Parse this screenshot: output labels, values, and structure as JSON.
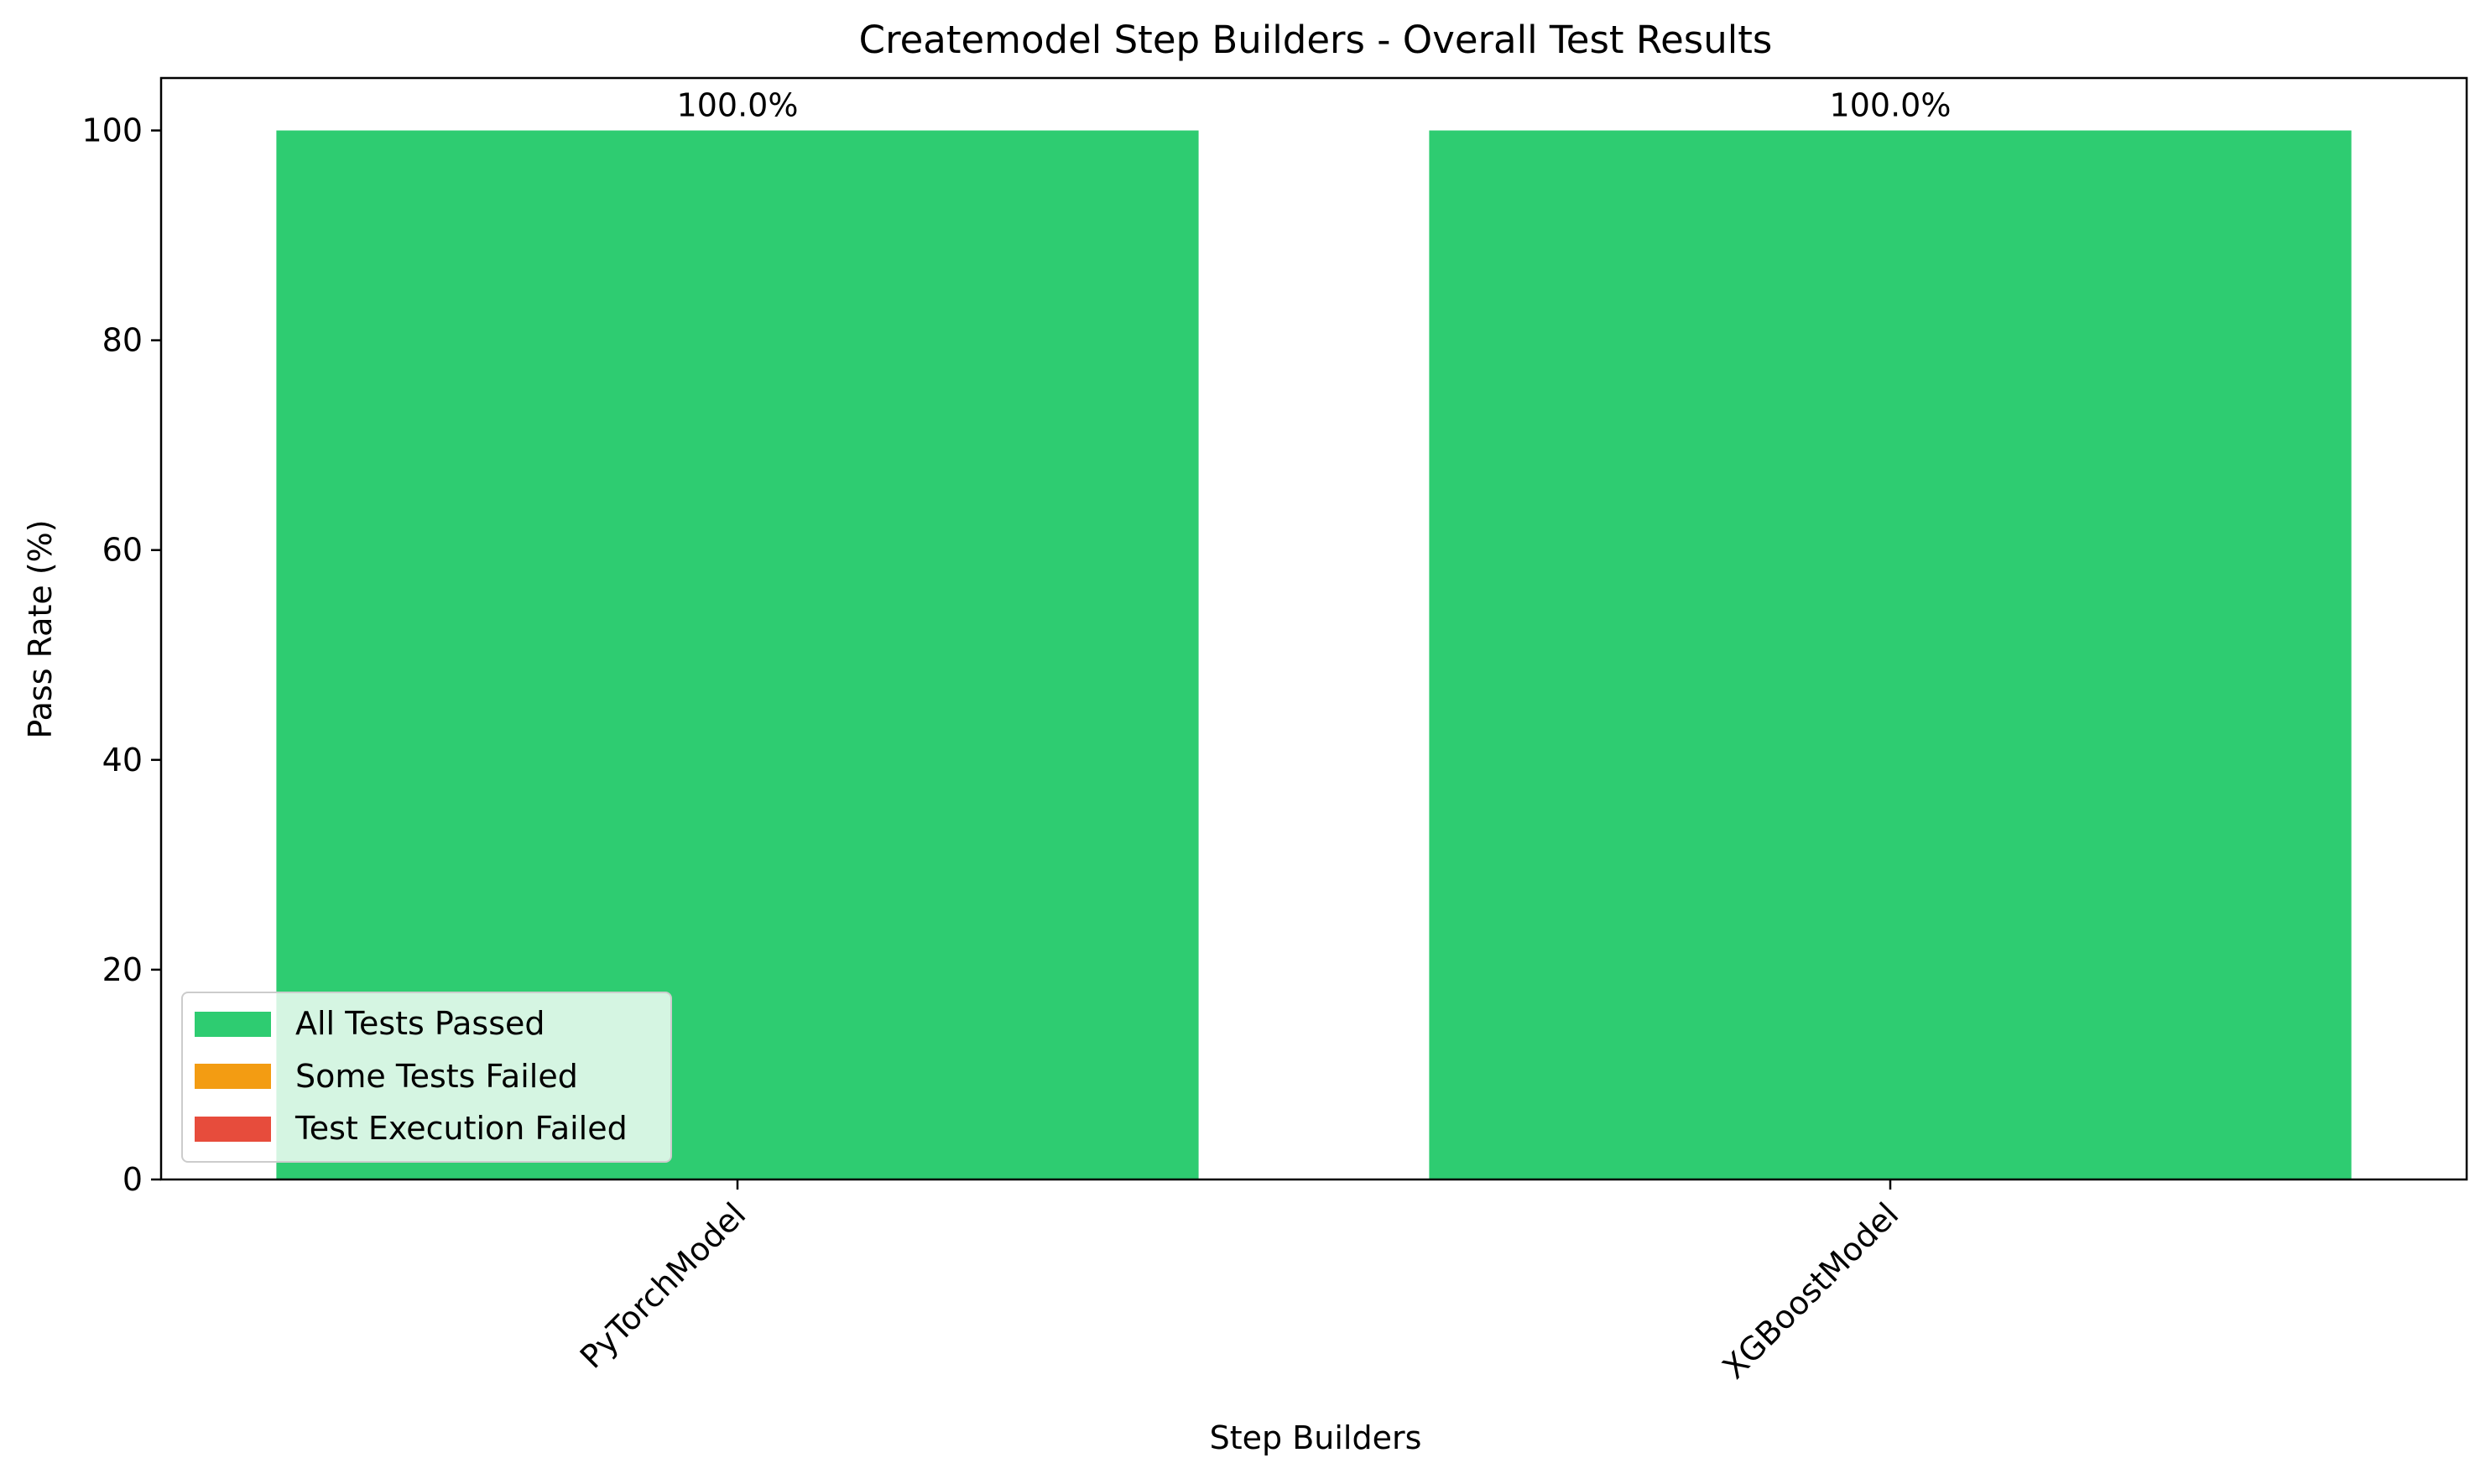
{
  "chart_data": {
    "type": "bar",
    "title": "Createmodel Step Builders - Overall Test Results",
    "xlabel": "Step Builders",
    "ylabel": "Pass Rate (%)",
    "categories": [
      "PyTorchModel",
      "XGBoostModel"
    ],
    "values": [
      100.0,
      100.0
    ],
    "value_labels": [
      "100.0%",
      "100.0%"
    ],
    "bar_colors": [
      "#2ecc71",
      "#2ecc71"
    ],
    "ylim": [
      0,
      105
    ],
    "yticks": [
      0,
      20,
      40,
      60,
      80,
      100
    ],
    "ytick_labels": [
      "0",
      "20",
      "40",
      "60",
      "80",
      "100"
    ],
    "x_tick_rotation_deg": 45,
    "grid": false,
    "legend": {
      "placement": "lower-left",
      "entries": [
        {
          "label": "All Tests Passed",
          "color": "#2ecc71"
        },
        {
          "label": "Some Tests Failed",
          "color": "#f39c12"
        },
        {
          "label": "Test Execution Failed",
          "color": "#e74c3c"
        }
      ]
    }
  }
}
